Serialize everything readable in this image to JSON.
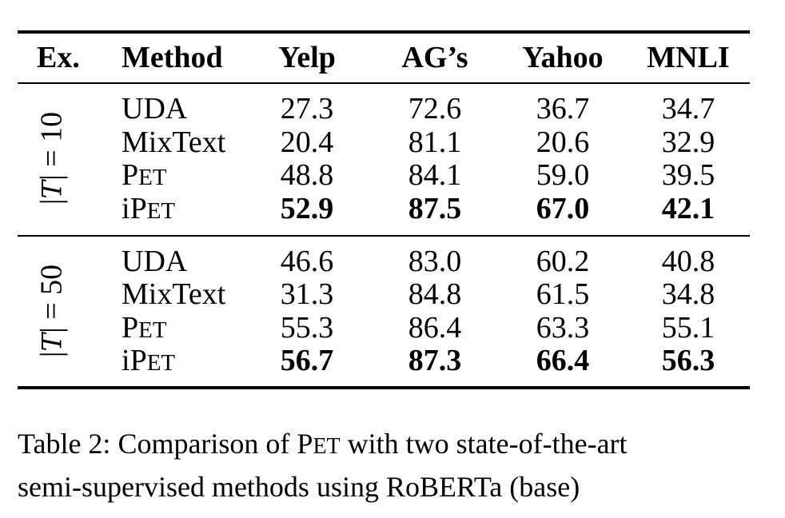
{
  "table": {
    "headers": {
      "ex": "Ex.",
      "method": "Method",
      "yelp": "Yelp",
      "ag": "AG’s",
      "yahoo": "Yahoo",
      "mnli": "MNLI"
    },
    "groups": [
      {
        "label_prefix": "|",
        "label_symbol": "T",
        "label_suffix": "| = 10",
        "rows": [
          {
            "method": "UDA",
            "yelp": "27.3",
            "ag": "72.6",
            "yahoo": "36.7",
            "mnli": "34.7"
          },
          {
            "method": "MixText",
            "yelp": "20.4",
            "ag": "81.1",
            "yahoo": "20.6",
            "mnli": "32.9"
          },
          {
            "method_prefix": "",
            "method_cap": "P",
            "method_sc": "ET",
            "yelp": "48.8",
            "ag": "84.1",
            "yahoo": "59.0",
            "mnli": "39.5"
          },
          {
            "method_prefix": "i",
            "method_cap": "P",
            "method_sc": "ET",
            "yelp": "52.9",
            "ag": "87.5",
            "yahoo": "67.0",
            "mnli": "42.1"
          }
        ]
      },
      {
        "label_prefix": "|",
        "label_symbol": "T",
        "label_suffix": "| = 50",
        "rows": [
          {
            "method": "UDA",
            "yelp": "46.6",
            "ag": "83.0",
            "yahoo": "60.2",
            "mnli": "40.8"
          },
          {
            "method": "MixText",
            "yelp": "31.3",
            "ag": "84.8",
            "yahoo": "61.5",
            "mnli": "34.8"
          },
          {
            "method_prefix": "",
            "method_cap": "P",
            "method_sc": "ET",
            "yelp": "55.3",
            "ag": "86.4",
            "yahoo": "63.3",
            "mnli": "55.1"
          },
          {
            "method_prefix": "i",
            "method_cap": "P",
            "method_sc": "ET",
            "yelp": "56.7",
            "ag": "87.3",
            "yahoo": "66.4",
            "mnli": "56.3"
          }
        ]
      }
    ]
  },
  "caption": {
    "line1_a": "Table 2:  Comparison of ",
    "line1_cap": "P",
    "line1_sc": "ET",
    "line1_b": " with two state-of-the-art",
    "line2": "semi-supervised methods using RoBERTa (base)"
  }
}
